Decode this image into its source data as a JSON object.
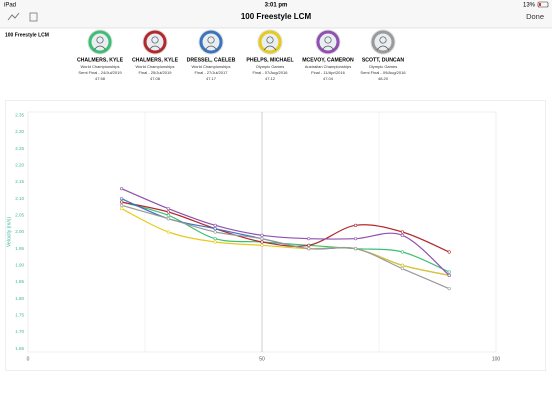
{
  "status_bar": {
    "device": "iPad",
    "time": "3:01 pm",
    "battery": "13%"
  },
  "nav_bar": {
    "title": "100 Freestyle LCM",
    "done": "Done"
  },
  "page_label": "100 Freestyle LCM",
  "chart_data": {
    "type": "line",
    "y_label": "Velocity (m/s)",
    "x": [
      20,
      30,
      40,
      50,
      60,
      70,
      80,
      90
    ],
    "xlim": [
      0,
      100
    ],
    "xticks": [
      0,
      50,
      100
    ],
    "xgrid": [
      25,
      50,
      75
    ],
    "ylim": [
      1.64,
      2.36
    ],
    "yticks": [
      {
        "value": 2.35,
        "label": "2.35"
      },
      {
        "value": 2.3,
        "label": "2.30"
      },
      {
        "value": 2.25,
        "label": "2.25"
      },
      {
        "value": 2.2,
        "label": "2.20"
      },
      {
        "value": 2.15,
        "label": "2.15"
      },
      {
        "value": 2.1,
        "label": "2.10"
      },
      {
        "value": 2.05,
        "label": "2.05"
      },
      {
        "value": 2.0,
        "label": "2.00"
      },
      {
        "value": 1.95,
        "label": "1.95"
      },
      {
        "value": 1.9,
        "label": "1.90"
      },
      {
        "value": 1.85,
        "label": "1.85"
      },
      {
        "value": 1.8,
        "label": "1.80"
      },
      {
        "value": 1.75,
        "label": "1.75"
      },
      {
        "value": 1.7,
        "label": "1.70"
      },
      {
        "value": 1.65,
        "label": "1.65"
      }
    ],
    "series": [
      {
        "name": "CHALMERS, KYLE",
        "event": "World Championships",
        "round": "Semi Final - 24/Jul/2019",
        "time": "47.58",
        "color": "#3cbf74",
        "values": [
          2.09,
          2.05,
          1.98,
          1.97,
          1.96,
          1.95,
          1.94,
          1.88
        ]
      },
      {
        "name": "CHALMERS, KYLE",
        "event": "World Championships",
        "round": "Final - 25/Jul/2019",
        "time": "47.08",
        "color": "#b3282d",
        "values": [
          2.09,
          2.06,
          2.01,
          1.97,
          1.96,
          2.02,
          2.0,
          1.94
        ]
      },
      {
        "name": "DRESSEL, CAELEB",
        "event": "World Championships",
        "round": "Final - 27/Jul/2017",
        "time": "47.17",
        "color": "#3c73c0",
        "values": [
          2.1,
          2.04,
          2.01,
          1.98,
          1.95,
          1.95,
          1.9,
          1.87
        ]
      },
      {
        "name": "PHELPS, MICHAEL",
        "event": "Olympic Games",
        "round": "Final - 07/Aug/2016",
        "time": "47.12",
        "color": "#e6cb1c",
        "values": [
          2.07,
          2.0,
          1.97,
          1.96,
          1.95,
          1.95,
          1.9,
          1.87
        ]
      },
      {
        "name": "MCEVOY, CAMERON",
        "event": "Australian Championships",
        "round": "Final - 11/Apr/2016",
        "time": "47.04",
        "color": "#9050b0",
        "values": [
          2.13,
          2.07,
          2.02,
          1.99,
          1.98,
          1.98,
          1.99,
          1.87
        ]
      },
      {
        "name": "SCOTT, DUNCAN",
        "event": "Olympic Games",
        "round": "Semi Final - 09/Aug/2016",
        "time": "48.20",
        "color": "#9a9a9a",
        "values": [
          2.08,
          2.04,
          2.0,
          1.98,
          1.95,
          1.95,
          1.89,
          1.83
        ]
      }
    ]
  }
}
